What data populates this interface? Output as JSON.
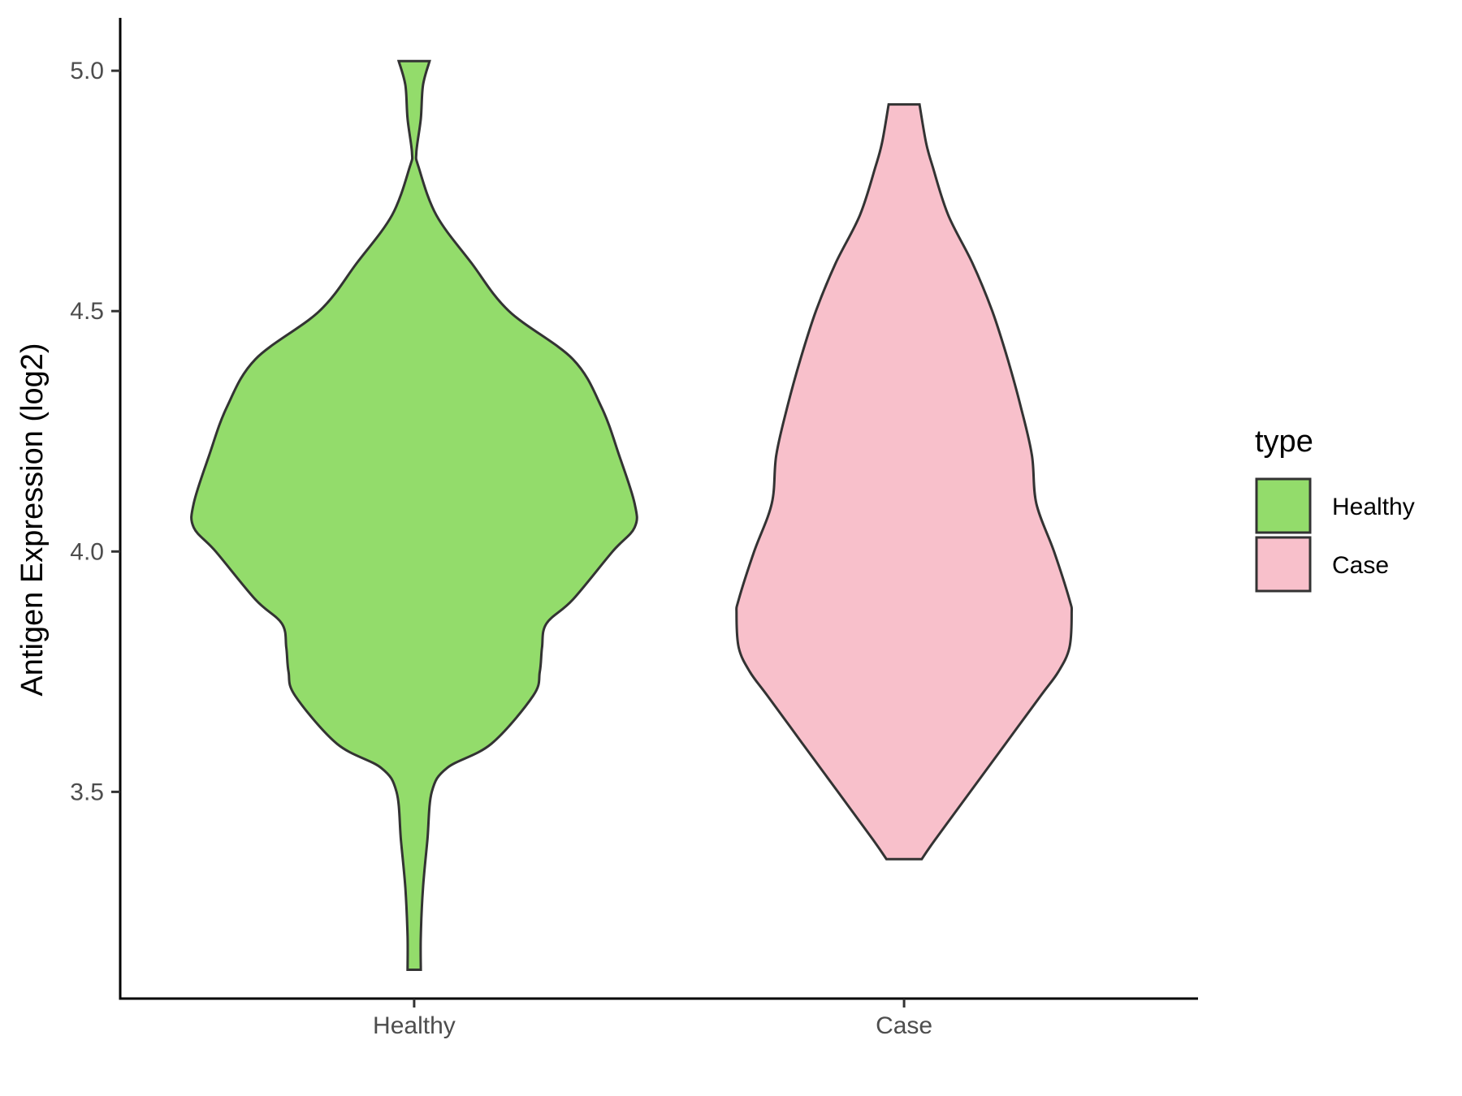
{
  "chart_data": {
    "type": "violin",
    "xlabel": "",
    "ylabel": "Antigen Expression (log2)",
    "ylim": [
      3.07,
      5.11
    ],
    "y_ticks": [
      3.5,
      4.0,
      4.5,
      5.0
    ],
    "y_tick_labels": [
      "3.5",
      "4.0",
      "4.5",
      "5.0"
    ],
    "categories": [
      "Healthy",
      "Case"
    ],
    "grid": false,
    "legend": {
      "title": "type",
      "position": "right",
      "entries": [
        {
          "label": "Healthy",
          "color": "#93dc6b"
        },
        {
          "label": "Case",
          "color": "#f8c0cb"
        }
      ]
    },
    "series": [
      {
        "name": "Healthy",
        "color": "#93dc6b",
        "min": 3.13,
        "max": 5.02,
        "density_profile": [
          [
            3.13,
            0.03
          ],
          [
            3.2,
            0.03
          ],
          [
            3.3,
            0.04
          ],
          [
            3.4,
            0.06
          ],
          [
            3.5,
            0.08
          ],
          [
            3.55,
            0.15
          ],
          [
            3.6,
            0.35
          ],
          [
            3.7,
            0.54
          ],
          [
            3.75,
            0.57
          ],
          [
            3.8,
            0.58
          ],
          [
            3.85,
            0.6
          ],
          [
            3.9,
            0.72
          ],
          [
            4.0,
            0.9
          ],
          [
            4.05,
            1.0
          ],
          [
            4.1,
            1.0
          ],
          [
            4.2,
            0.93
          ],
          [
            4.3,
            0.85
          ],
          [
            4.4,
            0.72
          ],
          [
            4.5,
            0.43
          ],
          [
            4.6,
            0.26
          ],
          [
            4.7,
            0.1
          ],
          [
            4.8,
            0.02
          ],
          [
            4.83,
            0.01
          ],
          [
            4.9,
            0.03
          ],
          [
            4.97,
            0.04
          ],
          [
            5.02,
            0.07
          ]
        ]
      },
      {
        "name": "Case",
        "color": "#f8c0cb",
        "min": 3.36,
        "max": 4.93,
        "density_profile": [
          [
            3.36,
            0.08
          ],
          [
            3.4,
            0.14
          ],
          [
            3.5,
            0.3
          ],
          [
            3.6,
            0.46
          ],
          [
            3.7,
            0.62
          ],
          [
            3.75,
            0.7
          ],
          [
            3.8,
            0.75
          ],
          [
            3.87,
            0.76
          ],
          [
            3.9,
            0.75
          ],
          [
            4.0,
            0.68
          ],
          [
            4.1,
            0.6
          ],
          [
            4.2,
            0.58
          ],
          [
            4.3,
            0.53
          ],
          [
            4.4,
            0.47
          ],
          [
            4.5,
            0.4
          ],
          [
            4.6,
            0.31
          ],
          [
            4.7,
            0.2
          ],
          [
            4.8,
            0.13
          ],
          [
            4.85,
            0.1
          ],
          [
            4.93,
            0.07
          ]
        ]
      }
    ]
  }
}
